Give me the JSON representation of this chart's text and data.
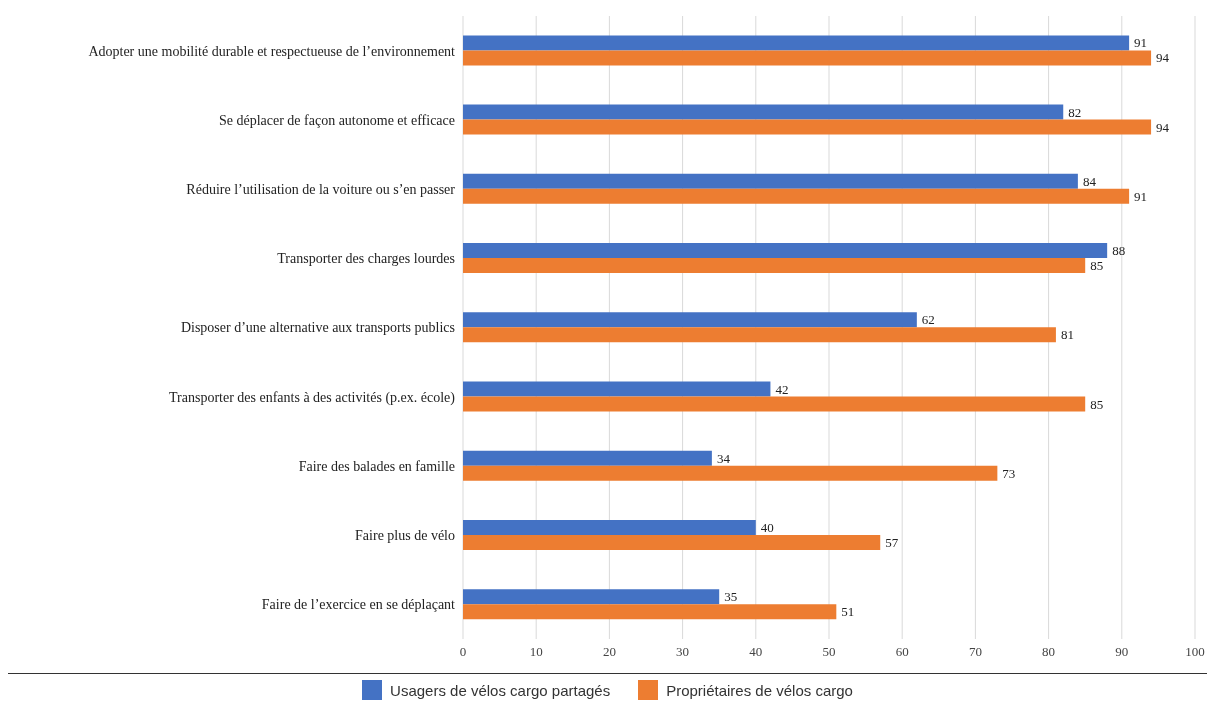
{
  "chart_data": {
    "type": "bar",
    "orientation": "horizontal",
    "categories": [
      "Adopter une mobilité durable et respectueuse de l’environnement",
      "Se déplacer de façon autonome et efficace",
      "Réduire l’utilisation de la voiture ou s’en passer",
      "Transporter des charges lourdes",
      "Disposer d’une alternative aux transports publics",
      "Transporter des enfants à des activités (p.ex. école)",
      "Faire des balades en famille",
      "Faire plus de vélo",
      "Faire de l’exercice en se déplaçant"
    ],
    "series": [
      {
        "name": "Usagers de vélos cargo partagés",
        "color": "#4472c4",
        "values": [
          91,
          82,
          84,
          88,
          62,
          42,
          34,
          40,
          35
        ]
      },
      {
        "name": "Propriétaires de vélos cargo",
        "color": "#ed7d31",
        "values": [
          94,
          94,
          91,
          85,
          81,
          85,
          73,
          57,
          51
        ]
      }
    ],
    "xlim": [
      0,
      100
    ],
    "xticks": [
      0,
      10,
      20,
      30,
      40,
      50,
      60,
      70,
      80,
      90,
      100
    ],
    "grid": "x",
    "legend": "bottom",
    "data_labels": true
  }
}
